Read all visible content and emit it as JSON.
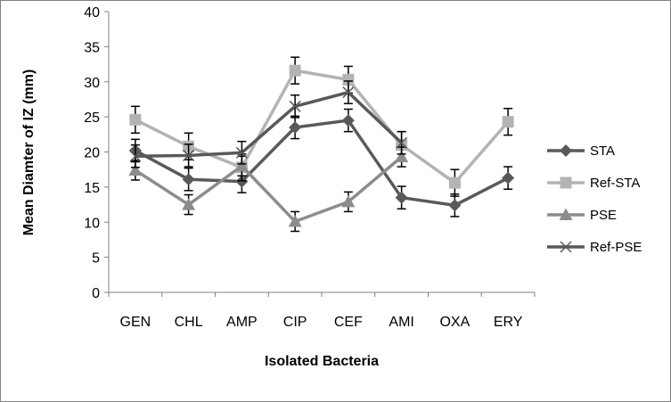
{
  "chart_data": {
    "type": "line",
    "xlabel": "Isolated Bacteria",
    "ylabel": "Mean Diamter of IZ (mm)",
    "ylim": [
      0,
      40
    ],
    "yticks": [
      0,
      5,
      10,
      15,
      20,
      25,
      30,
      35,
      40
    ],
    "categories": [
      "GEN",
      "CHL",
      "AMP",
      "CIP",
      "CEF",
      "AMI",
      "OXA",
      "ERY"
    ],
    "grid": false,
    "legend": "right",
    "series": [
      {
        "name": "STA",
        "marker": "diamond",
        "color": "#595959",
        "values": [
          20.2,
          16.1,
          15.8,
          23.5,
          24.5,
          13.5,
          12.4,
          16.3
        ],
        "errors": [
          1.6,
          1.6,
          1.6,
          1.6,
          1.6,
          1.6,
          1.6,
          1.6
        ]
      },
      {
        "name": "Ref-STA",
        "marker": "square",
        "color": "#b3b3b3",
        "values": [
          24.6,
          20.8,
          17.8,
          31.6,
          30.3,
          21.0,
          15.6,
          24.3
        ],
        "errors": [
          1.9,
          1.9,
          1.9,
          1.9,
          1.9,
          1.9,
          1.9,
          1.9
        ]
      },
      {
        "name": "PSE",
        "marker": "triangle",
        "color": "#8c8c8c",
        "values": [
          17.4,
          12.5,
          18.0,
          10.1,
          12.9,
          19.3,
          null,
          null
        ],
        "errors": [
          1.4,
          1.4,
          1.4,
          1.4,
          1.4,
          1.4,
          null,
          null
        ]
      },
      {
        "name": "Ref-PSE",
        "marker": "x",
        "color": "#595959",
        "values": [
          19.4,
          19.5,
          19.9,
          26.5,
          28.5,
          21.3,
          null,
          null
        ],
        "errors": [
          1.6,
          1.6,
          1.6,
          1.6,
          1.6,
          1.6,
          null,
          null
        ]
      }
    ]
  }
}
